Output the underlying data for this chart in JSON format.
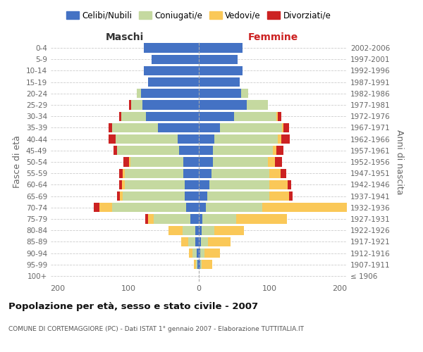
{
  "age_groups": [
    "100+",
    "95-99",
    "90-94",
    "85-89",
    "80-84",
    "75-79",
    "70-74",
    "65-69",
    "60-64",
    "55-59",
    "50-54",
    "45-49",
    "40-44",
    "35-39",
    "30-34",
    "25-29",
    "20-24",
    "15-19",
    "10-14",
    "5-9",
    "0-4"
  ],
  "birth_years": [
    "≤ 1906",
    "1907-1911",
    "1912-1916",
    "1917-1921",
    "1922-1926",
    "1927-1931",
    "1932-1936",
    "1937-1941",
    "1942-1946",
    "1947-1951",
    "1952-1956",
    "1957-1961",
    "1962-1966",
    "1967-1971",
    "1972-1976",
    "1977-1981",
    "1982-1986",
    "1987-1991",
    "1992-1996",
    "1997-2001",
    "2002-2006"
  ],
  "males": {
    "celibi": [
      0,
      2,
      3,
      5,
      5,
      12,
      18,
      20,
      20,
      22,
      22,
      28,
      30,
      58,
      75,
      80,
      82,
      72,
      78,
      67,
      78
    ],
    "coniugati": [
      0,
      2,
      6,
      10,
      18,
      52,
      105,
      88,
      85,
      83,
      75,
      88,
      88,
      65,
      35,
      16,
      6,
      0,
      0,
      0,
      0
    ],
    "vedovi": [
      0,
      3,
      5,
      10,
      20,
      8,
      18,
      4,
      4,
      3,
      2,
      0,
      0,
      0,
      0,
      0,
      0,
      0,
      0,
      0,
      0
    ],
    "divorziati": [
      0,
      0,
      0,
      0,
      0,
      4,
      8,
      4,
      4,
      5,
      8,
      5,
      10,
      5,
      3,
      3,
      0,
      0,
      0,
      0,
      0
    ]
  },
  "females": {
    "nubili": [
      0,
      2,
      2,
      3,
      4,
      5,
      10,
      12,
      15,
      18,
      20,
      20,
      22,
      30,
      50,
      68,
      60,
      58,
      62,
      55,
      62
    ],
    "coniugate": [
      0,
      2,
      6,
      10,
      18,
      48,
      80,
      88,
      85,
      82,
      78,
      85,
      90,
      88,
      60,
      30,
      10,
      0,
      0,
      0,
      0
    ],
    "vedove": [
      0,
      15,
      22,
      32,
      42,
      72,
      130,
      28,
      26,
      16,
      10,
      5,
      5,
      2,
      2,
      0,
      0,
      0,
      0,
      0,
      0
    ],
    "divorziate": [
      0,
      0,
      0,
      0,
      0,
      0,
      0,
      5,
      5,
      8,
      10,
      10,
      12,
      8,
      5,
      0,
      0,
      0,
      0,
      0,
      0
    ]
  },
  "colors": {
    "celibi": "#4472C4",
    "coniugati": "#C5D9A0",
    "vedovi": "#FAC858",
    "divorziati": "#CC2222"
  },
  "xlim": 210,
  "title": "Popolazione per età, sesso e stato civile - 2007",
  "subtitle": "COMUNE DI CORTEMAGGIORE (PC) - Dati ISTAT 1° gennaio 2007 - Elaborazione TUTTITALIA.IT",
  "ylabel_left": "Fasce di età",
  "ylabel_right": "Anni di nascita",
  "xlabel_maschi": "Maschi",
  "xlabel_femmine": "Femmine",
  "bg_color": "#ffffff",
  "grid_color": "#cccccc",
  "legend_labels": [
    "Celibi/Nubili",
    "Coniugati/e",
    "Vedovi/e",
    "Divorziati/e"
  ]
}
